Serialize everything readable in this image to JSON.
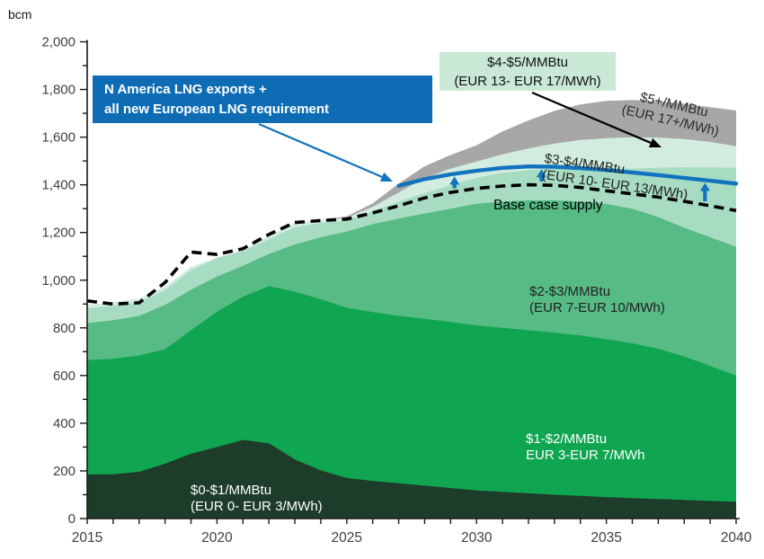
{
  "unit": "bcm",
  "annotations": {
    "callout": {
      "line1": "N America LNG exports +",
      "line2": "all new European LNG requirement"
    },
    "band_box": {
      "line1": "$4-$5/MMBtu",
      "line2": "(EUR 13- EUR 17/MWh)"
    },
    "label_5plus": {
      "line1": "$5+/MMBtu",
      "line2": "(EUR 17+/MWh)"
    },
    "label_34": {
      "line1": "$3-$4/MMBtu",
      "line2": "(EUR 10- EUR 13/MWh)"
    },
    "base_case": "Base case supply",
    "label_23": {
      "line1": "$2-$3/MMBtu",
      "line2": "(EUR 7-EUR 10/MWh)"
    },
    "label_12": {
      "line1": "$1-$2/MMBtu",
      "line2": "EUR 3-EUR 7/MWh"
    },
    "label_01": {
      "line1": "$0-$1/MMBtu",
      "line2": "(EUR 0- EUR 3/MWh)"
    }
  },
  "colors": {
    "band_0_1": "#1E3C2A",
    "band_1_2": "#0FA551",
    "band_2_3": "#57BB85",
    "band_3_4": "#A8DCC2",
    "band_4_5": "#D2EDDF",
    "band_5plus": "#A7A7A7",
    "base_case_line": "#000000",
    "lng_line": "#1273BE",
    "callout_bg": "#0E6CB5",
    "band_box_bg": "#C9E8D6",
    "axis": "#1a1a1a",
    "tick_text": "#3f3f3f"
  },
  "chart_data": {
    "type": "area",
    "title": "",
    "ylabel": "bcm",
    "xlabel": "",
    "xlim": [
      2015,
      2040
    ],
    "ylim": [
      0,
      2000
    ],
    "y_tick_step": 200,
    "y_minor_step": 100,
    "y_tick_labels": [
      "0",
      "200",
      "400",
      "600",
      "800",
      "1,000",
      "1,200",
      "1,400",
      "1,600",
      "1,800",
      "2,000"
    ],
    "x_tick_labels": [
      "2015",
      "2020",
      "2025",
      "2030",
      "2035",
      "2040"
    ],
    "x_tick_years_labeled": [
      2015,
      2020,
      2025,
      2030,
      2035,
      2040
    ],
    "years": [
      2015,
      2016,
      2017,
      2018,
      2019,
      2020,
      2021,
      2022,
      2023,
      2024,
      2025,
      2026,
      2027,
      2028,
      2029,
      2030,
      2031,
      2032,
      2033,
      2034,
      2035,
      2036,
      2037,
      2038,
      2039,
      2040
    ],
    "series_note": "values are cumulative stack tops in bcm",
    "series": [
      {
        "name": "$0-$1/MMBtu (EUR 0- EUR 3/MWh)",
        "color_key": "band_0_1",
        "tops": [
          185,
          186,
          196,
          230,
          272,
          300,
          330,
          316,
          248,
          202,
          170,
          158,
          148,
          138,
          128,
          118,
          112,
          106,
          100,
          95,
          90,
          86,
          82,
          78,
          74,
          70
        ]
      },
      {
        "name": "$1-$2/MMBtu (EUR 3-EUR 7/MWh)",
        "color_key": "band_1_2",
        "tops": [
          665,
          670,
          684,
          710,
          790,
          868,
          930,
          975,
          952,
          920,
          884,
          866,
          850,
          838,
          825,
          810,
          800,
          790,
          780,
          768,
          752,
          735,
          712,
          680,
          640,
          600
        ]
      },
      {
        "name": "$2-$3/MMBtu (EUR 7-EUR 10/MWh)",
        "color_key": "band_2_3",
        "tops": [
          820,
          832,
          850,
          896,
          960,
          1015,
          1060,
          1110,
          1150,
          1180,
          1204,
          1235,
          1258,
          1280,
          1300,
          1321,
          1330,
          1335,
          1335,
          1330,
          1320,
          1300,
          1265,
          1220,
          1180,
          1140
        ]
      },
      {
        "name": "$3-$4/MMBtu (EUR 10- EUR 13/MWh)",
        "color_key": "band_3_4",
        "tops": [
          882,
          892,
          908,
          958,
          1042,
          1092,
          1122,
          1172,
          1222,
          1240,
          1250,
          1288,
          1330,
          1365,
          1398,
          1430,
          1450,
          1462,
          1468,
          1470,
          1470,
          1468,
          1472,
          1474,
          1473,
          1472
        ]
      },
      {
        "name": "$4-$5/MMBtu (EUR 13- EUR 17/MWh)",
        "color_key": "band_4_5",
        "tops": [
          896,
          906,
          922,
          972,
          1055,
          1095,
          1125,
          1185,
          1238,
          1252,
          1262,
          1308,
          1368,
          1428,
          1468,
          1498,
          1528,
          1553,
          1573,
          1588,
          1596,
          1600,
          1598,
          1592,
          1580,
          1562
        ]
      },
      {
        "name": "$5+/MMBtu (EUR 17+/MWh)",
        "color_key": "band_5plus",
        "tops": [
          896,
          906,
          922,
          972,
          1055,
          1095,
          1125,
          1185,
          1238,
          1252,
          1268,
          1322,
          1405,
          1478,
          1525,
          1566,
          1624,
          1670,
          1710,
          1737,
          1752,
          1756,
          1750,
          1740,
          1726,
          1712
        ]
      }
    ],
    "base_case_supply": {
      "name": "Base case supply",
      "values": [
        913,
        900,
        905,
        990,
        1118,
        1108,
        1132,
        1192,
        1242,
        1250,
        1256,
        1282,
        1312,
        1345,
        1368,
        1385,
        1395,
        1400,
        1398,
        1389,
        1375,
        1362,
        1348,
        1331,
        1312,
        1292
      ]
    },
    "lng_requirement_line": {
      "name": "N America LNG exports + all new European LNG requirement",
      "start_year": 2027,
      "values": [
        1396,
        1424,
        1444,
        1459,
        1471,
        1477,
        1476,
        1470,
        1462,
        1452,
        1441,
        1429,
        1417,
        1405
      ]
    },
    "gap_arrows_years": [
      2029.15,
      2032.5,
      2038.8
    ]
  }
}
